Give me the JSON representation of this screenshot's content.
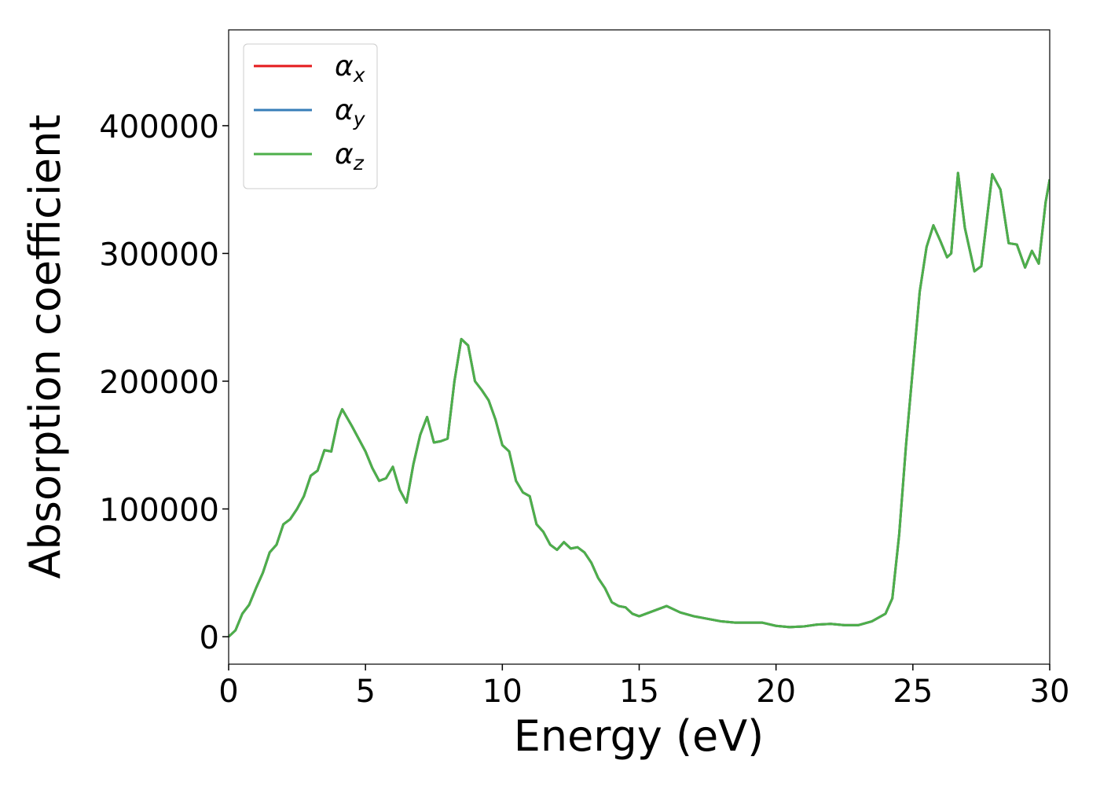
{
  "chart_data": {
    "type": "line",
    "xlabel": "Energy (eV)",
    "ylabel": "Absorption coefficient",
    "x": [
      0,
      0.25,
      0.5,
      0.75,
      1.0,
      1.25,
      1.5,
      1.75,
      2.0,
      2.25,
      2.5,
      2.75,
      3.0,
      3.25,
      3.5,
      3.75,
      4.0,
      4.15,
      4.5,
      4.75,
      5.0,
      5.25,
      5.5,
      5.75,
      6.0,
      6.25,
      6.5,
      6.75,
      7.0,
      7.25,
      7.5,
      7.75,
      8.0,
      8.25,
      8.5,
      8.75,
      9.0,
      9.25,
      9.5,
      9.75,
      10.0,
      10.25,
      10.5,
      10.75,
      11.0,
      11.25,
      11.5,
      11.75,
      12.0,
      12.25,
      12.5,
      12.75,
      13.0,
      13.25,
      13.5,
      13.75,
      14.0,
      14.25,
      14.5,
      14.75,
      15.0,
      15.5,
      16.0,
      16.5,
      17.0,
      17.5,
      18.0,
      18.5,
      19.0,
      19.5,
      20.0,
      20.5,
      21.0,
      21.5,
      22.0,
      22.5,
      23.0,
      23.5,
      24.0,
      24.25,
      24.5,
      24.75,
      25.0,
      25.25,
      25.5,
      25.75,
      26.0,
      26.25,
      26.4,
      26.65,
      26.9,
      27.25,
      27.5,
      27.9,
      28.2,
      28.5,
      28.8,
      29.1,
      29.35,
      29.6,
      29.85,
      30.0
    ],
    "series": [
      {
        "name": "αx",
        "color": "#e41a1c",
        "values": [
          0,
          5000,
          18000,
          25000,
          38000,
          50000,
          66000,
          72000,
          88000,
          92000,
          100000,
          110000,
          126000,
          130000,
          146000,
          145000,
          170000,
          178000,
          165000,
          155000,
          145000,
          132000,
          122000,
          124000,
          133000,
          115000,
          105000,
          135000,
          158000,
          172000,
          152000,
          153000,
          155000,
          200000,
          233000,
          228000,
          200000,
          193000,
          185000,
          170000,
          150000,
          145000,
          122000,
          113000,
          110000,
          88000,
          82000,
          72000,
          68000,
          74000,
          69000,
          70000,
          66000,
          58000,
          46000,
          38000,
          27000,
          24000,
          23000,
          18000,
          16000,
          20000,
          24000,
          19000,
          16000,
          14000,
          12000,
          11000,
          11000,
          11000,
          8500,
          7500,
          8000,
          9500,
          10000,
          9000,
          9000,
          12000,
          18000,
          30000,
          80000,
          150000,
          210000,
          270000,
          305000,
          322000,
          310000,
          297000,
          300000,
          363000,
          320000,
          286000,
          290000,
          362000,
          350000,
          308000,
          307000,
          289000,
          302000,
          292000,
          340000,
          358000
        ]
      },
      {
        "name": "αy",
        "color": "#377eb8",
        "values": [
          0,
          5000,
          18000,
          25000,
          38000,
          50000,
          66000,
          72000,
          88000,
          92000,
          100000,
          110000,
          126000,
          130000,
          146000,
          145000,
          170000,
          178000,
          165000,
          155000,
          145000,
          132000,
          122000,
          124000,
          133000,
          115000,
          105000,
          135000,
          158000,
          172000,
          152000,
          153000,
          155000,
          200000,
          233000,
          228000,
          200000,
          193000,
          185000,
          170000,
          150000,
          145000,
          122000,
          113000,
          110000,
          88000,
          82000,
          72000,
          68000,
          74000,
          69000,
          70000,
          66000,
          58000,
          46000,
          38000,
          27000,
          24000,
          23000,
          18000,
          16000,
          20000,
          24000,
          19000,
          16000,
          14000,
          12000,
          11000,
          11000,
          11000,
          8500,
          7500,
          8000,
          9500,
          10000,
          9000,
          9000,
          12000,
          18000,
          30000,
          80000,
          150000,
          210000,
          270000,
          305000,
          322000,
          310000,
          297000,
          300000,
          363000,
          320000,
          286000,
          290000,
          362000,
          350000,
          308000,
          307000,
          289000,
          302000,
          292000,
          340000,
          358000
        ]
      },
      {
        "name": "αz",
        "color": "#4daf4a",
        "values": [
          0,
          5000,
          18000,
          25000,
          38000,
          50000,
          66000,
          72000,
          88000,
          92000,
          100000,
          110000,
          126000,
          130000,
          146000,
          145000,
          170000,
          178000,
          165000,
          155000,
          145000,
          132000,
          122000,
          124000,
          133000,
          115000,
          105000,
          135000,
          158000,
          172000,
          152000,
          153000,
          155000,
          200000,
          233000,
          228000,
          200000,
          193000,
          185000,
          170000,
          150000,
          145000,
          122000,
          113000,
          110000,
          88000,
          82000,
          72000,
          68000,
          74000,
          69000,
          70000,
          66000,
          58000,
          46000,
          38000,
          27000,
          24000,
          23000,
          18000,
          16000,
          20000,
          24000,
          19000,
          16000,
          14000,
          12000,
          11000,
          11000,
          11000,
          8500,
          7500,
          8000,
          9500,
          10000,
          9000,
          9000,
          12000,
          18000,
          30000,
          80000,
          150000,
          210000,
          270000,
          305000,
          322000,
          310000,
          297000,
          300000,
          363000,
          320000,
          286000,
          290000,
          362000,
          350000,
          308000,
          307000,
          289000,
          302000,
          292000,
          340000,
          358000
        ]
      }
    ],
    "xlim": [
      0,
      30
    ],
    "xticks": [
      0,
      5,
      10,
      15,
      20,
      25,
      30
    ],
    "ylim": [
      -21500,
      475000
    ],
    "yticks": [
      0,
      100000,
      200000,
      300000,
      400000
    ],
    "legend": "upper left",
    "grid": false
  }
}
